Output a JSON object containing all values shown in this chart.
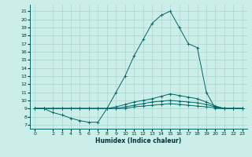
{
  "xlabel": "Humidex (Indice chaleur)",
  "bg_color": "#cceee8",
  "grid_color": "#aad4ce",
  "line_color": "#006666",
  "xlim": [
    -0.5,
    23.5
  ],
  "ylim": [
    6.5,
    21.8
  ],
  "yticks": [
    7,
    8,
    9,
    10,
    11,
    12,
    13,
    14,
    15,
    16,
    17,
    18,
    19,
    20,
    21
  ],
  "xticks": [
    0,
    2,
    3,
    4,
    5,
    6,
    7,
    8,
    9,
    10,
    11,
    12,
    13,
    14,
    15,
    16,
    17,
    18,
    19,
    20,
    21,
    22,
    23
  ],
  "series": [
    {
      "x": [
        0,
        1,
        2,
        3,
        4,
        5,
        6,
        7,
        8,
        9,
        10,
        11,
        12,
        13,
        14,
        15,
        16,
        17,
        18,
        19,
        20,
        21,
        22,
        23
      ],
      "y": [
        9,
        9,
        8.5,
        8.2,
        7.8,
        7.5,
        7.3,
        7.3,
        9.0,
        11.0,
        13.0,
        15.5,
        17.5,
        19.5,
        20.5,
        21.0,
        19.0,
        17.0,
        16.5,
        11.0,
        9.0,
        9.0,
        9.0,
        9.0
      ]
    },
    {
      "x": [
        0,
        1,
        2,
        3,
        4,
        5,
        6,
        7,
        8,
        9,
        10,
        11,
        12,
        13,
        14,
        15,
        16,
        17,
        18,
        19,
        20,
        21,
        22,
        23
      ],
      "y": [
        9,
        9,
        9,
        9,
        9,
        9,
        9,
        9,
        9.0,
        9.2,
        9.5,
        9.8,
        10.0,
        10.2,
        10.5,
        10.8,
        10.6,
        10.4,
        10.2,
        9.8,
        9.3,
        9.0,
        9.0,
        9.0
      ]
    },
    {
      "x": [
        0,
        1,
        2,
        3,
        4,
        5,
        6,
        7,
        8,
        9,
        10,
        11,
        12,
        13,
        14,
        15,
        16,
        17,
        18,
        19,
        20,
        21,
        22,
        23
      ],
      "y": [
        9,
        9,
        9,
        9,
        9,
        9,
        9,
        9,
        9.0,
        9.0,
        9.2,
        9.4,
        9.6,
        9.8,
        9.9,
        10.0,
        9.9,
        9.8,
        9.7,
        9.5,
        9.2,
        9.0,
        9.0,
        9.0
      ]
    },
    {
      "x": [
        0,
        1,
        2,
        3,
        4,
        5,
        6,
        7,
        8,
        9,
        10,
        11,
        12,
        13,
        14,
        15,
        16,
        17,
        18,
        19,
        20,
        21,
        22,
        23
      ],
      "y": [
        9,
        9,
        9,
        9,
        9,
        9,
        9,
        9,
        9.0,
        9.0,
        9.0,
        9.2,
        9.3,
        9.4,
        9.5,
        9.6,
        9.5,
        9.4,
        9.3,
        9.2,
        9.1,
        9.0,
        9.0,
        9.0
      ]
    }
  ]
}
